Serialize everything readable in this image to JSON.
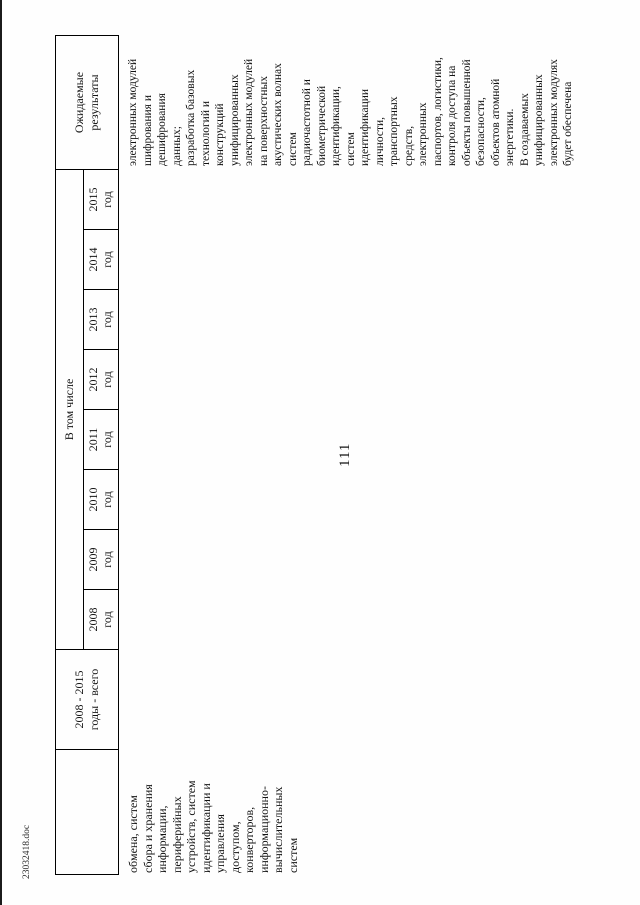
{
  "page": {
    "number": "111",
    "footer_filename": "23032418.doc"
  },
  "table": {
    "header": {
      "col_total_lines": [
        "2008 - 2015",
        "годы - всего"
      ],
      "group_label": "В том числе",
      "years": [
        "2008",
        "2009",
        "2010",
        "2011",
        "2012",
        "2013",
        "2014",
        "2015"
      ],
      "year_word": "год",
      "col_results_lines": [
        "Ожидаемые",
        "результаты"
      ]
    },
    "body": {
      "description_lines": [
        "обмена, систем",
        "сбора и хранения",
        "информации,",
        "периферийных",
        "устройств, систем",
        "идентификации и",
        "управления",
        "доступом,",
        "конверторов,",
        "информационно-",
        "вычислительных",
        "систем"
      ],
      "results_lines": [
        "электронных модулей",
        "шифрования и",
        "дешифрования",
        "данных;",
        "разработка базовых",
        "технологий и",
        "конструкций",
        "унифицированных",
        "электронных модулей",
        "на поверхностных",
        "акустических волнах",
        "систем",
        "радиочастотной и",
        "биометрической",
        "идентификации,",
        "систем",
        "идентификации",
        "личности,",
        "транспортных",
        "средств,",
        "электронных",
        "паспортов, логистики,",
        "контроля доступа на",
        "объекты повышенной",
        "безопасности,",
        "объектов атомной",
        "энергетики.",
        "В создаваемых",
        "унифицированных",
        "электронных модулях",
        "будет обеспечена"
      ]
    }
  }
}
